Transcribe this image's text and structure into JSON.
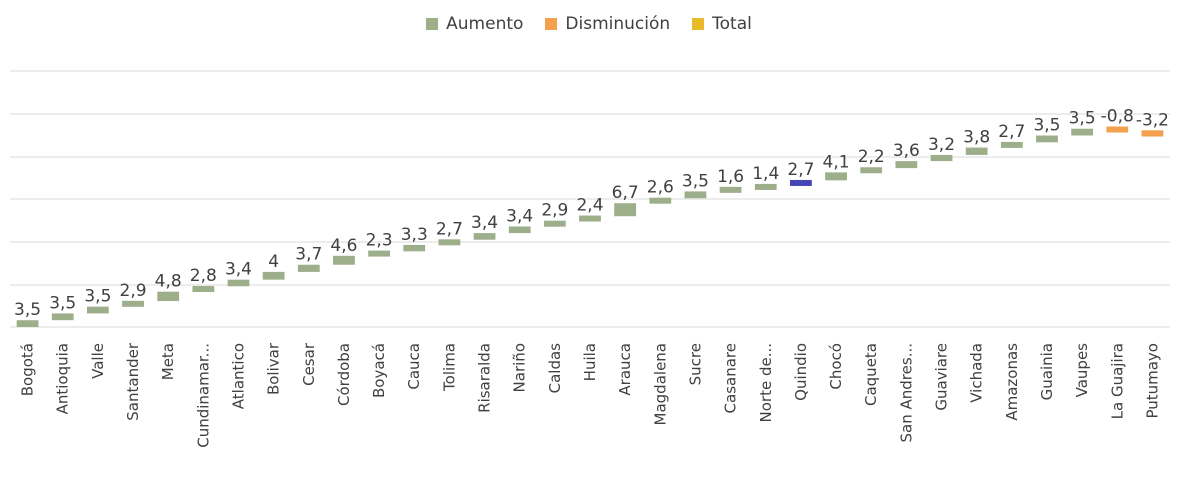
{
  "chart_data": {
    "type": "bar",
    "subtype": "waterfall",
    "legend": {
      "position": "top",
      "items": [
        {
          "name": "Aumento",
          "color": "#9dae8a"
        },
        {
          "name": "Disminución",
          "color": "#f3a14f"
        },
        {
          "name": "Total",
          "color": "#e6bb27"
        }
      ]
    },
    "grid": true,
    "categories": [
      "Bogotá",
      "Antioquia",
      "Valle",
      "Santander",
      "Meta",
      "Cundinamar...",
      "Atlantico",
      "Bolivar",
      "Cesar",
      "Córdoba",
      "Boyacá",
      "Cauca",
      "Tolima",
      "Risaralda",
      "Nariño",
      "Caldas",
      "Huila",
      "Arauca",
      "Magdalena",
      "Sucre",
      "Casanare",
      "Norte de...",
      "Quindio",
      "Chocó",
      "Caqueta",
      "San Andres...",
      "Guaviare",
      "Vichada",
      "Amazonas",
      "Guainia",
      "Vaupes",
      "La Guajira",
      "Putumayo"
    ],
    "values": [
      3.5,
      3.5,
      3.5,
      2.9,
      4.8,
      2.8,
      3.4,
      4,
      3.7,
      4.6,
      2.3,
      3.3,
      2.7,
      3.4,
      3.4,
      2.9,
      2.4,
      6.7,
      2.6,
      3.5,
      1.6,
      1.4,
      2.7,
      4.1,
      2.2,
      3.6,
      3.2,
      3.8,
      2.7,
      3.5,
      3.5,
      -0.8,
      -3.2
    ],
    "labels": [
      "3,5",
      "3,5",
      "3,5",
      "2,9",
      "4,8",
      "2,8",
      "3,4",
      "4",
      "3,7",
      "4,6",
      "2,3",
      "3,3",
      "2,7",
      "3,4",
      "3,4",
      "2,9",
      "2,4",
      "6,7",
      "2,6",
      "3,5",
      "1,6",
      "1,4",
      "2,7",
      "4,1",
      "2,2",
      "3,6",
      "3,2",
      "3,8",
      "2,7",
      "3,5",
      "3,5",
      "-0,8",
      "-3,2"
    ],
    "highlight": {
      "category": "Quindio",
      "color": "#4545b8"
    },
    "colors": {
      "increase": "#9dae8a",
      "decrease": "#f3a14f",
      "gridline": "#d9d9d9",
      "text": "#404040"
    }
  }
}
